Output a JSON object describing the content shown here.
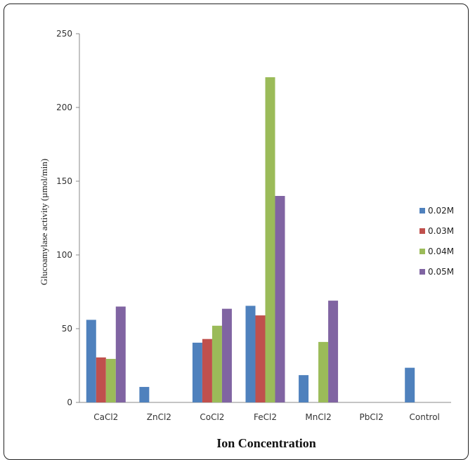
{
  "chart_data": {
    "type": "bar",
    "title": "",
    "xlabel": "Ion Concentration",
    "ylabel": "Glucoamylase activity (µmol/min)",
    "ylim": [
      0,
      250
    ],
    "yticks": [
      "0",
      "50",
      "100",
      "150",
      "200",
      "250"
    ],
    "grid": false,
    "legend_position": "right",
    "categories": [
      "CaCl2",
      "ZnCl2",
      "CoCl2",
      "FeCl2",
      "MnCl2",
      "PbCl2",
      "Control"
    ],
    "series": [
      {
        "name": "0.02M",
        "color": "#4f81bd",
        "values": [
          56,
          10.5,
          40.5,
          65.5,
          18.5,
          0,
          23.5
        ]
      },
      {
        "name": "0.03M",
        "color": "#c0504d",
        "values": [
          30.5,
          0,
          43,
          59,
          0,
          0,
          0
        ]
      },
      {
        "name": "0.04M",
        "color": "#9bbb59",
        "values": [
          29.5,
          0,
          52,
          220.5,
          41,
          0,
          0
        ]
      },
      {
        "name": "0.05M",
        "color": "#8064a2",
        "values": [
          65,
          0,
          63.5,
          140,
          69,
          0,
          0
        ]
      }
    ]
  }
}
